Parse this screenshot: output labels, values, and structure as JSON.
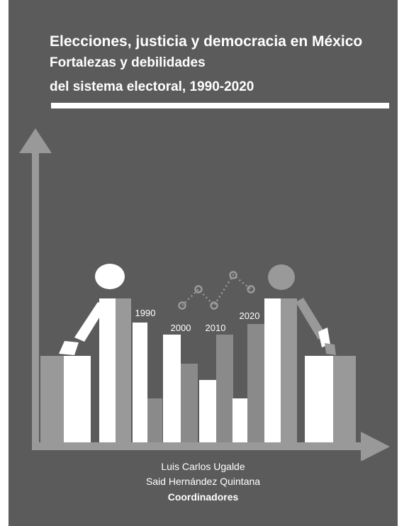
{
  "cover": {
    "title_line1": "Elecciones, justicia y democracia en México",
    "title_line2": "Fortalezas y debilidades",
    "title_line3": "del sistema electoral, 1990-2020",
    "years": [
      "1990",
      "2000",
      "2010",
      "2020"
    ],
    "authors": [
      "Luis Carlos Ugalde",
      "Said Hernández Quintana"
    ],
    "role": "Coordinadores"
  },
  "colors": {
    "background": "#5b5b5b",
    "white": "#ffffff",
    "light_gray": "#999999",
    "mid_gray": "#8a8a8a"
  }
}
